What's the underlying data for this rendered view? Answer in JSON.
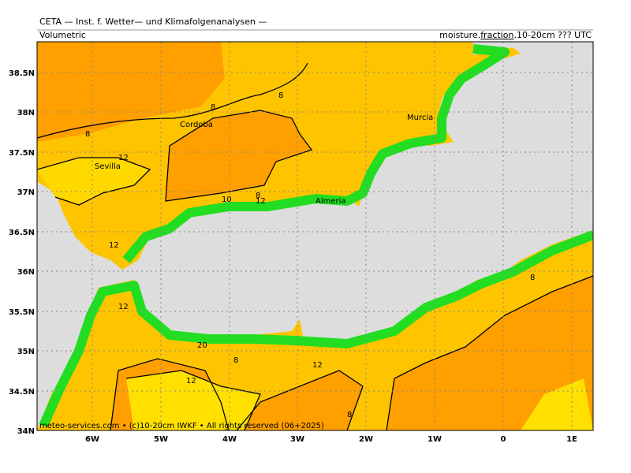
{
  "header": {
    "title": "CETA — Inst. f. Wetter— und Klimafolgenanalysen —",
    "left": "Volumetric",
    "right_pre": "moisture.",
    "right_box": "fraction",
    "right_post": ".10-20cm ??? UTC"
  },
  "lon_labels": [
    "6W",
    "5W",
    "4W",
    "3W",
    "2W",
    "1W",
    "0",
    "1E"
  ],
  "lat_labels": [
    "38.5N",
    "38N",
    "37.5N",
    "37N",
    "36.5N",
    "36N",
    "35.5N",
    "35N",
    "34.5N",
    "34N"
  ],
  "cities": [
    "Cordoba",
    "Sevilla",
    "Murcia",
    "Almeria"
  ],
  "contour_labels": [
    "8",
    "8",
    "8",
    "12",
    "8",
    "10",
    "12",
    "12",
    "12",
    "8",
    "12",
    "8",
    "20",
    "8",
    "12"
  ],
  "footer": "meteo-services.com • (c)10-20cm IWKF • All rights reserved (06+2025)"
}
